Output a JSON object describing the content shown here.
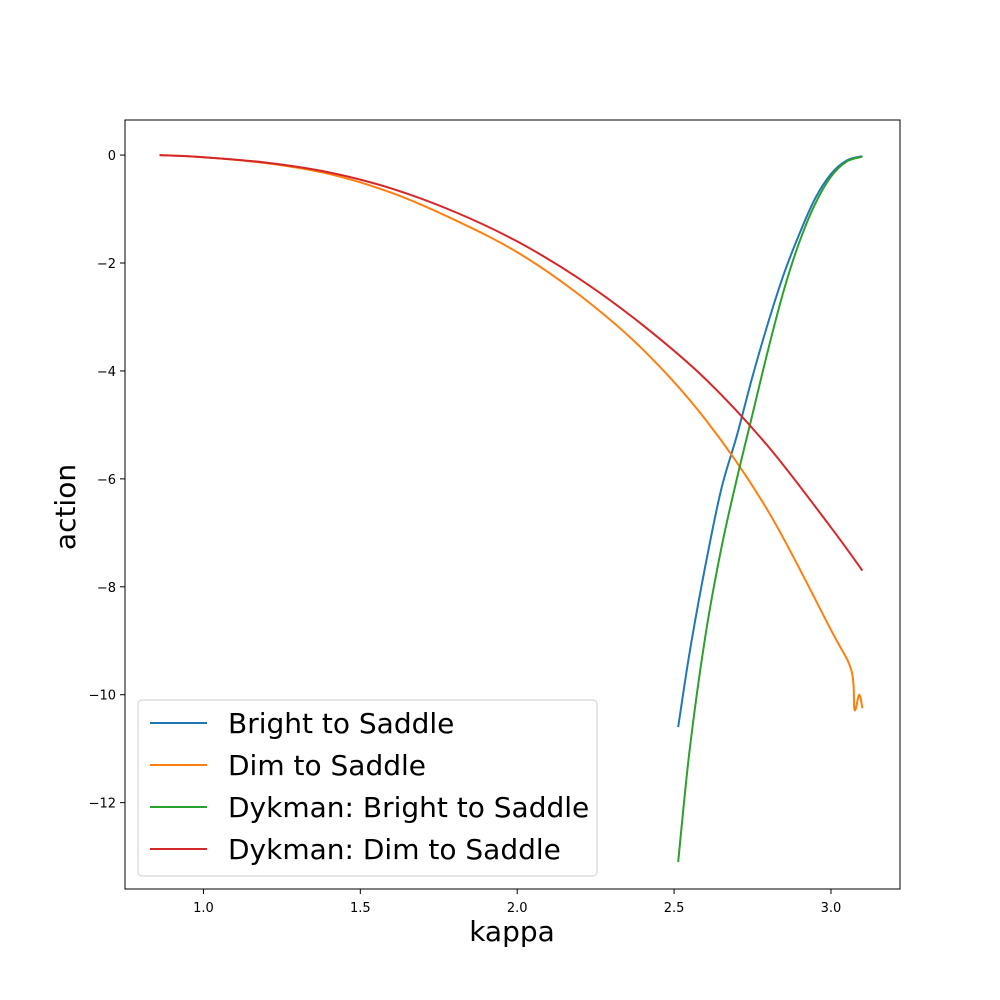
{
  "chart_data": {
    "type": "line",
    "title": "",
    "xlabel": "kappa",
    "ylabel": "action",
    "xlim": [
      0.75,
      3.22
    ],
    "ylim": [
      -13.6,
      0.65
    ],
    "xticks": [
      1.0,
      1.5,
      2.0,
      2.5,
      3.0
    ],
    "xtick_labels": [
      "1.0",
      "1.5",
      "2.0",
      "2.5",
      "3.0"
    ],
    "yticks": [
      0,
      -2,
      -4,
      -6,
      -8,
      -10,
      -12
    ],
    "ytick_labels": [
      "0",
      "−2",
      "−4",
      "−6",
      "−8",
      "−10",
      "−12"
    ],
    "grid": false,
    "legend_position": "lower-left",
    "series": [
      {
        "name": "Bright to Saddle",
        "color": "#1f77b4",
        "x": [
          2.513,
          2.55,
          2.6,
          2.65,
          2.7,
          2.75,
          2.8,
          2.85,
          2.9,
          2.95,
          3.0,
          3.05,
          3.1
        ],
        "y": [
          -10.6,
          -9.2,
          -7.6,
          -6.2,
          -5.2,
          -4.1,
          -3.1,
          -2.2,
          -1.45,
          -0.8,
          -0.35,
          -0.1,
          -0.02
        ]
      },
      {
        "name": "Dim to Saddle",
        "color": "#ff7f0e",
        "x": [
          0.86,
          1.0,
          1.2,
          1.4,
          1.6,
          1.8,
          2.0,
          2.2,
          2.4,
          2.6,
          2.8,
          3.0,
          3.065,
          3.075,
          3.09,
          3.1
        ],
        "y": [
          0.0,
          -0.04,
          -0.15,
          -0.35,
          -0.7,
          -1.2,
          -1.8,
          -2.6,
          -3.6,
          -4.9,
          -6.6,
          -8.8,
          -9.55,
          -10.28,
          -10.0,
          -10.25
        ]
      },
      {
        "name": "Dykman: Bright to Saddle",
        "color": "#2ca02c",
        "x": [
          2.513,
          2.55,
          2.6,
          2.65,
          2.7,
          2.75,
          2.8,
          2.85,
          2.9,
          2.95,
          3.0,
          3.05,
          3.1
        ],
        "y": [
          -13.1,
          -11.0,
          -8.9,
          -7.3,
          -6.0,
          -4.8,
          -3.6,
          -2.5,
          -1.6,
          -0.9,
          -0.4,
          -0.12,
          -0.03
        ]
      },
      {
        "name": "Dykman: Dim to Saddle",
        "color": "#d62728",
        "x": [
          0.86,
          1.0,
          1.2,
          1.4,
          1.6,
          1.8,
          2.0,
          2.2,
          2.4,
          2.6,
          2.8,
          3.0,
          3.1
        ],
        "y": [
          0.0,
          -0.04,
          -0.14,
          -0.32,
          -0.62,
          -1.05,
          -1.6,
          -2.3,
          -3.15,
          -4.15,
          -5.4,
          -6.9,
          -7.7
        ]
      }
    ]
  }
}
